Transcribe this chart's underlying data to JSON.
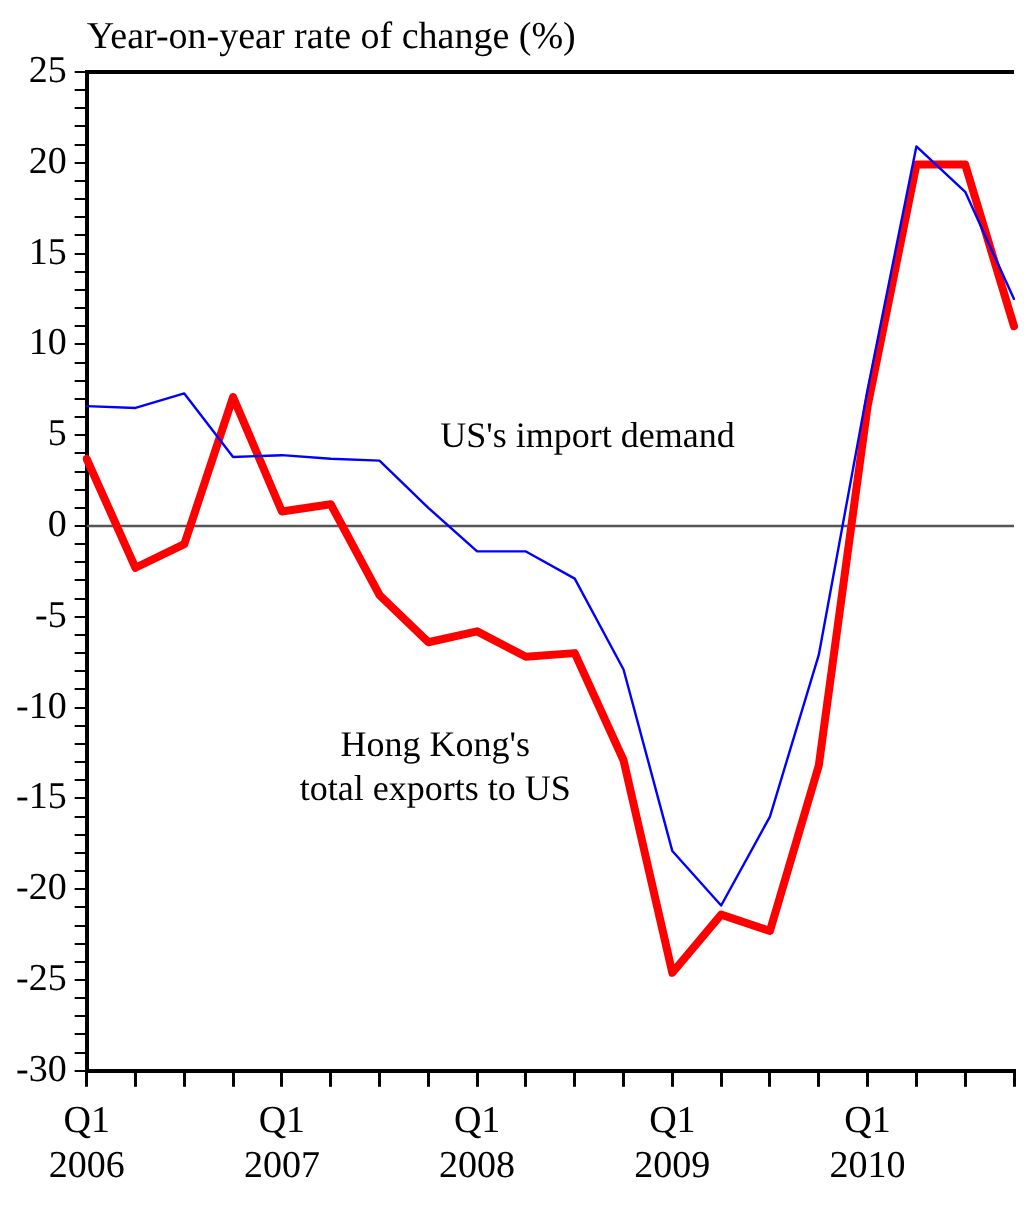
{
  "chart_data": {
    "type": "line",
    "ylabel": "Year-on-year rate of change (%)",
    "categories": [
      "Q1\n2006",
      null,
      null,
      null,
      "Q1\n2007",
      null,
      null,
      null,
      "Q1\n2008",
      null,
      null,
      null,
      "Q1\n2009",
      null,
      null,
      null,
      "Q1\n2010",
      null,
      null,
      null
    ],
    "series": [
      {
        "name": "US's import demand",
        "color": "#0000ff",
        "values": [
          6.6,
          6.5,
          7.3,
          3.8,
          3.9,
          3.7,
          3.6,
          1.0,
          -1.4,
          -1.4,
          -2.9,
          -7.9,
          -17.9,
          -20.9,
          -16.0,
          -7.1,
          7.5,
          20.9,
          18.4,
          12.5
        ]
      },
      {
        "name": "Hong Kong's\ntotal exports to US",
        "color": "#ff0000",
        "values": [
          3.7,
          -2.3,
          -1.0,
          7.1,
          0.8,
          1.2,
          -3.8,
          -6.4,
          -5.8,
          -7.2,
          -7.0,
          -12.9,
          -24.6,
          -21.4,
          -22.3,
          -13.2,
          6.6,
          19.9,
          19.9,
          11.0
        ]
      }
    ],
    "ylim": [
      -30,
      25
    ],
    "yticks": [
      -30,
      {
        "value": -29,
        "label": null
      },
      {
        "value": -28,
        "label": null
      },
      {
        "value": -27,
        "label": null
      },
      {
        "value": -26,
        "label": null
      },
      -25,
      {
        "value": -24,
        "label": null
      },
      {
        "value": -23,
        "label": null
      },
      {
        "value": -22,
        "label": null
      },
      {
        "value": -21,
        "label": null
      },
      -20,
      {
        "value": -19,
        "label": null
      },
      {
        "value": -18,
        "label": null
      },
      {
        "value": -17,
        "label": null
      },
      {
        "value": -16,
        "label": null
      },
      -15,
      {
        "value": -14,
        "label": null
      },
      {
        "value": -13,
        "label": null
      },
      {
        "value": -12,
        "label": null
      },
      {
        "value": -11,
        "label": null
      },
      -10,
      {
        "value": -9,
        "label": null
      },
      {
        "value": -8,
        "label": null
      },
      {
        "value": -7,
        "label": null
      },
      {
        "value": -6,
        "label": null
      },
      -5,
      {
        "value": -4,
        "label": null
      },
      {
        "value": -3,
        "label": null
      },
      {
        "value": -2,
        "label": null
      },
      {
        "value": -1,
        "label": null
      },
      0,
      {
        "value": 1,
        "label": null
      },
      {
        "value": 2,
        "label": null
      },
      {
        "value": 3,
        "label": null
      },
      {
        "value": 4,
        "label": null
      },
      5,
      {
        "value": 6,
        "label": null
      },
      {
        "value": 7,
        "label": null
      },
      {
        "value": 8,
        "label": null
      },
      {
        "value": 9,
        "label": null
      },
      10,
      {
        "value": 11,
        "label": null
      },
      {
        "value": 12,
        "label": null
      },
      {
        "value": 13,
        "label": null
      },
      {
        "value": 14,
        "label": null
      },
      15,
      {
        "value": 16,
        "label": null
      },
      {
        "value": 17,
        "label": null
      },
      {
        "value": 18,
        "label": null
      },
      {
        "value": 19,
        "label": null
      },
      20,
      {
        "value": 21,
        "label": null
      },
      {
        "value": 22,
        "label": null
      },
      {
        "value": 23,
        "label": null
      },
      {
        "value": 24,
        "label": null
      },
      25
    ],
    "ref_lines": [
      {
        "axis": "y",
        "value": 0,
        "color": "#555555"
      }
    ],
    "grid": false,
    "legend": false,
    "marker": "none",
    "line_style": "solid"
  }
}
